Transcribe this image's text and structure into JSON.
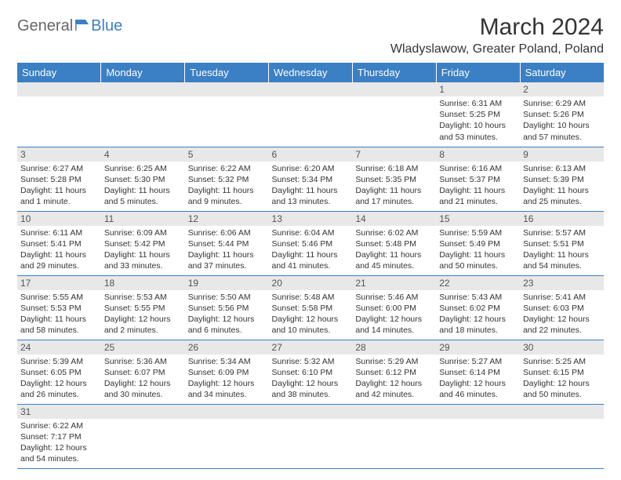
{
  "logo": {
    "general": "General",
    "blue": "Blue"
  },
  "title": "March 2024",
  "location": "Wladyslawow, Greater Poland, Poland",
  "colors": {
    "header_bg": "#3b7fc4",
    "header_fg": "#ffffff",
    "daynum_bg": "#e8e8e8",
    "border": "#3b7fc4",
    "text": "#333333"
  },
  "day_headers": [
    "Sunday",
    "Monday",
    "Tuesday",
    "Wednesday",
    "Thursday",
    "Friday",
    "Saturday"
  ],
  "weeks": [
    [
      null,
      null,
      null,
      null,
      null,
      {
        "n": "1",
        "sunrise": "6:31 AM",
        "sunset": "5:25 PM",
        "daylight": "10 hours and 53 minutes."
      },
      {
        "n": "2",
        "sunrise": "6:29 AM",
        "sunset": "5:26 PM",
        "daylight": "10 hours and 57 minutes."
      }
    ],
    [
      {
        "n": "3",
        "sunrise": "6:27 AM",
        "sunset": "5:28 PM",
        "daylight": "11 hours and 1 minute."
      },
      {
        "n": "4",
        "sunrise": "6:25 AM",
        "sunset": "5:30 PM",
        "daylight": "11 hours and 5 minutes."
      },
      {
        "n": "5",
        "sunrise": "6:22 AM",
        "sunset": "5:32 PM",
        "daylight": "11 hours and 9 minutes."
      },
      {
        "n": "6",
        "sunrise": "6:20 AM",
        "sunset": "5:34 PM",
        "daylight": "11 hours and 13 minutes."
      },
      {
        "n": "7",
        "sunrise": "6:18 AM",
        "sunset": "5:35 PM",
        "daylight": "11 hours and 17 minutes."
      },
      {
        "n": "8",
        "sunrise": "6:16 AM",
        "sunset": "5:37 PM",
        "daylight": "11 hours and 21 minutes."
      },
      {
        "n": "9",
        "sunrise": "6:13 AM",
        "sunset": "5:39 PM",
        "daylight": "11 hours and 25 minutes."
      }
    ],
    [
      {
        "n": "10",
        "sunrise": "6:11 AM",
        "sunset": "5:41 PM",
        "daylight": "11 hours and 29 minutes."
      },
      {
        "n": "11",
        "sunrise": "6:09 AM",
        "sunset": "5:42 PM",
        "daylight": "11 hours and 33 minutes."
      },
      {
        "n": "12",
        "sunrise": "6:06 AM",
        "sunset": "5:44 PM",
        "daylight": "11 hours and 37 minutes."
      },
      {
        "n": "13",
        "sunrise": "6:04 AM",
        "sunset": "5:46 PM",
        "daylight": "11 hours and 41 minutes."
      },
      {
        "n": "14",
        "sunrise": "6:02 AM",
        "sunset": "5:48 PM",
        "daylight": "11 hours and 45 minutes."
      },
      {
        "n": "15",
        "sunrise": "5:59 AM",
        "sunset": "5:49 PM",
        "daylight": "11 hours and 50 minutes."
      },
      {
        "n": "16",
        "sunrise": "5:57 AM",
        "sunset": "5:51 PM",
        "daylight": "11 hours and 54 minutes."
      }
    ],
    [
      {
        "n": "17",
        "sunrise": "5:55 AM",
        "sunset": "5:53 PM",
        "daylight": "11 hours and 58 minutes."
      },
      {
        "n": "18",
        "sunrise": "5:53 AM",
        "sunset": "5:55 PM",
        "daylight": "12 hours and 2 minutes."
      },
      {
        "n": "19",
        "sunrise": "5:50 AM",
        "sunset": "5:56 PM",
        "daylight": "12 hours and 6 minutes."
      },
      {
        "n": "20",
        "sunrise": "5:48 AM",
        "sunset": "5:58 PM",
        "daylight": "12 hours and 10 minutes."
      },
      {
        "n": "21",
        "sunrise": "5:46 AM",
        "sunset": "6:00 PM",
        "daylight": "12 hours and 14 minutes."
      },
      {
        "n": "22",
        "sunrise": "5:43 AM",
        "sunset": "6:02 PM",
        "daylight": "12 hours and 18 minutes."
      },
      {
        "n": "23",
        "sunrise": "5:41 AM",
        "sunset": "6:03 PM",
        "daylight": "12 hours and 22 minutes."
      }
    ],
    [
      {
        "n": "24",
        "sunrise": "5:39 AM",
        "sunset": "6:05 PM",
        "daylight": "12 hours and 26 minutes."
      },
      {
        "n": "25",
        "sunrise": "5:36 AM",
        "sunset": "6:07 PM",
        "daylight": "12 hours and 30 minutes."
      },
      {
        "n": "26",
        "sunrise": "5:34 AM",
        "sunset": "6:09 PM",
        "daylight": "12 hours and 34 minutes."
      },
      {
        "n": "27",
        "sunrise": "5:32 AM",
        "sunset": "6:10 PM",
        "daylight": "12 hours and 38 minutes."
      },
      {
        "n": "28",
        "sunrise": "5:29 AM",
        "sunset": "6:12 PM",
        "daylight": "12 hours and 42 minutes."
      },
      {
        "n": "29",
        "sunrise": "5:27 AM",
        "sunset": "6:14 PM",
        "daylight": "12 hours and 46 minutes."
      },
      {
        "n": "30",
        "sunrise": "5:25 AM",
        "sunset": "6:15 PM",
        "daylight": "12 hours and 50 minutes."
      }
    ],
    [
      {
        "n": "31",
        "sunrise": "6:22 AM",
        "sunset": "7:17 PM",
        "daylight": "12 hours and 54 minutes."
      },
      null,
      null,
      null,
      null,
      null,
      null
    ]
  ],
  "labels": {
    "sunrise": "Sunrise:",
    "sunset": "Sunset:",
    "daylight": "Daylight:"
  }
}
